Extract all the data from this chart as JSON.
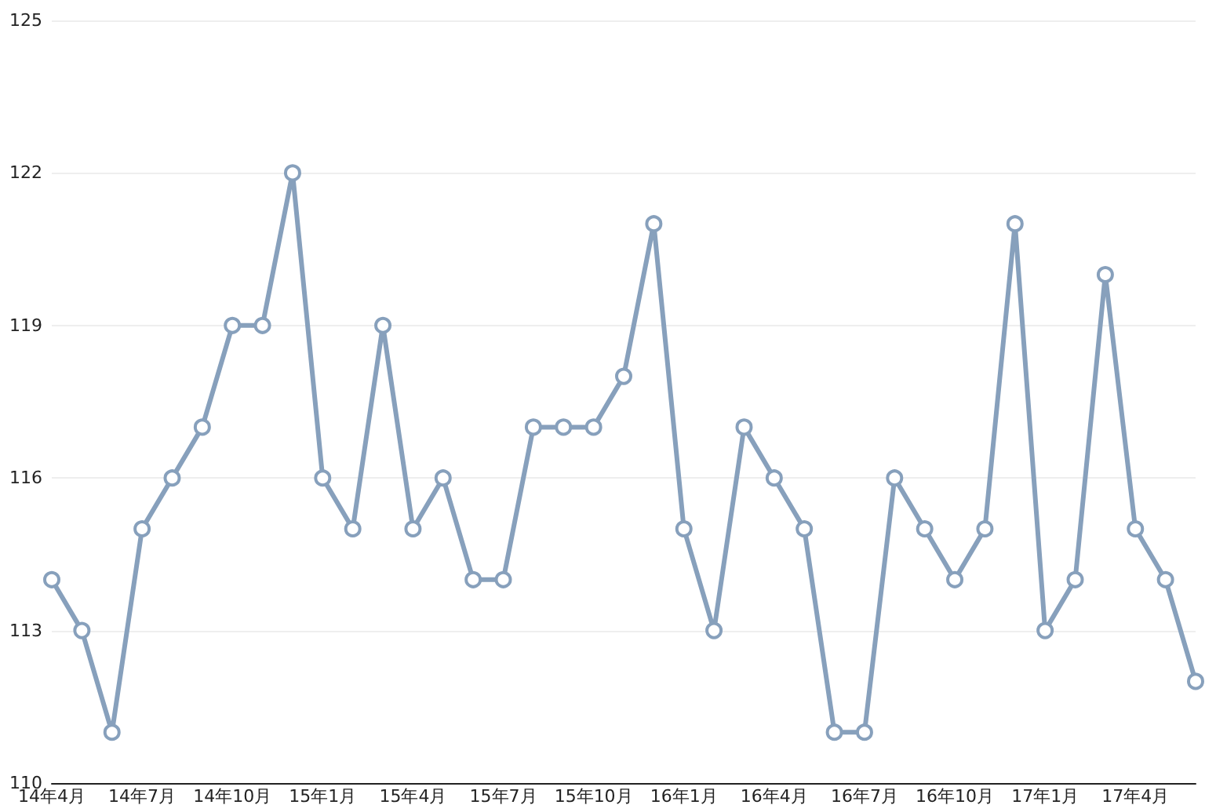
{
  "chart_data": {
    "type": "line",
    "categories": [
      "14年4月",
      null,
      null,
      "14年7月",
      null,
      null,
      "14年10月",
      null,
      null,
      "15年1月",
      null,
      null,
      "15年4月",
      null,
      null,
      "15年7月",
      null,
      null,
      "15年10月",
      null,
      null,
      "16年1月",
      null,
      null,
      "16年4月",
      null,
      null,
      "16年7月",
      null,
      null,
      "16年10月",
      null,
      null,
      "17年1月",
      null,
      null,
      "17年4月",
      null,
      null
    ],
    "series": [
      {
        "color": "#87a0bc",
        "values": [
          114,
          113,
          111,
          115,
          116,
          117,
          119,
          119,
          122,
          116,
          115,
          119,
          115,
          116,
          114,
          114,
          117,
          117,
          117,
          118,
          121,
          115,
          113,
          117,
          116,
          115,
          111,
          111,
          116,
          115,
          114,
          115,
          121,
          113,
          114,
          120,
          115,
          114,
          112
        ]
      }
    ],
    "ylim": [
      110,
      125
    ],
    "yticks": [
      110,
      113,
      116,
      119,
      122,
      125
    ],
    "grid": "y",
    "marker": "circle",
    "line_style": "solid"
  }
}
